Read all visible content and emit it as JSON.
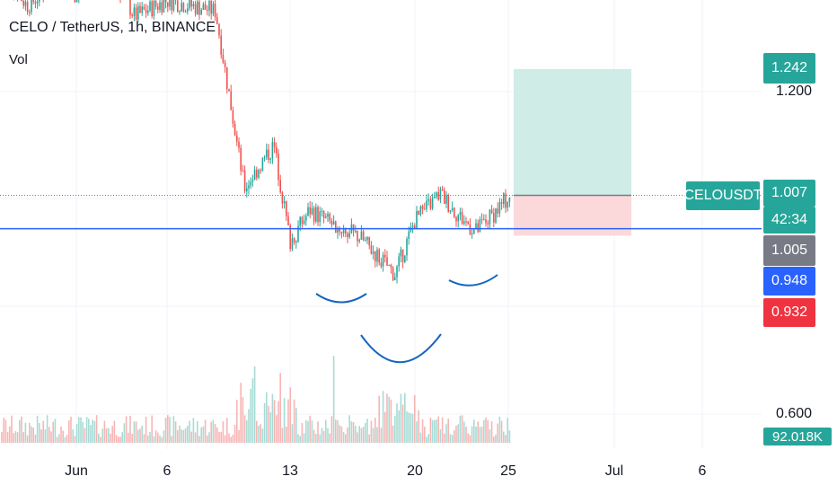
{
  "header": {
    "title": "CELO / TetherUS, 1h, BINANCE",
    "volume_label": "Vol"
  },
  "price_axis": {
    "tick_1200": "1.200",
    "tick_0600": "0.600",
    "target_label": "1.242",
    "current_price": "1.007",
    "countdown": "42:34",
    "gray_label": "1.005",
    "blue_label": "0.948",
    "red_label": "0.932",
    "volume_value": "92.018K",
    "symbol_tag": "CELOUSDT"
  },
  "time_axis": [
    "Jun",
    "6",
    "13",
    "20",
    "25",
    "Jul",
    "6"
  ],
  "colors": {
    "up": "#26a69a",
    "down": "#ef5350",
    "blue_line": "#2962ff",
    "neckline": "#1565c0",
    "profit_zone": "#cfece6",
    "loss_zone": "#fbd9db",
    "gray": "#787b86"
  },
  "chart_data": {
    "type": "candlestick",
    "title": "CELO / TetherUS, 1h, BINANCE",
    "price_series": [
      [
        "Jun",
        1.38
      ],
      [
        "6",
        1.37
      ],
      [
        "9",
        1.35
      ],
      [
        "11",
        1.02
      ],
      [
        "12",
        1.1
      ],
      [
        "13",
        0.92
      ],
      [
        "14",
        0.98
      ],
      [
        "16",
        0.95
      ],
      [
        "17",
        0.93
      ],
      [
        "19",
        0.86
      ],
      [
        "20",
        0.96
      ],
      [
        "21",
        1.01
      ],
      [
        "22",
        0.97
      ],
      [
        "23",
        0.94
      ],
      [
        "24",
        0.97
      ],
      [
        "25",
        1.007
      ]
    ],
    "horizontal_line": 1.005,
    "current_price": 1.007,
    "long_position": {
      "target": 1.242,
      "entry": 1.007,
      "stop": 0.932
    },
    "x_ticks": [
      "Jun",
      "6",
      "13",
      "20",
      "25",
      "Jul",
      "6"
    ],
    "y_ticks": [
      1.2,
      0.6
    ],
    "volume_last": "92.018K",
    "annotations": "inverse head and shoulders: left shoulder ~Jun 15, head ~Jun 19, right shoulder ~Jun 23"
  }
}
